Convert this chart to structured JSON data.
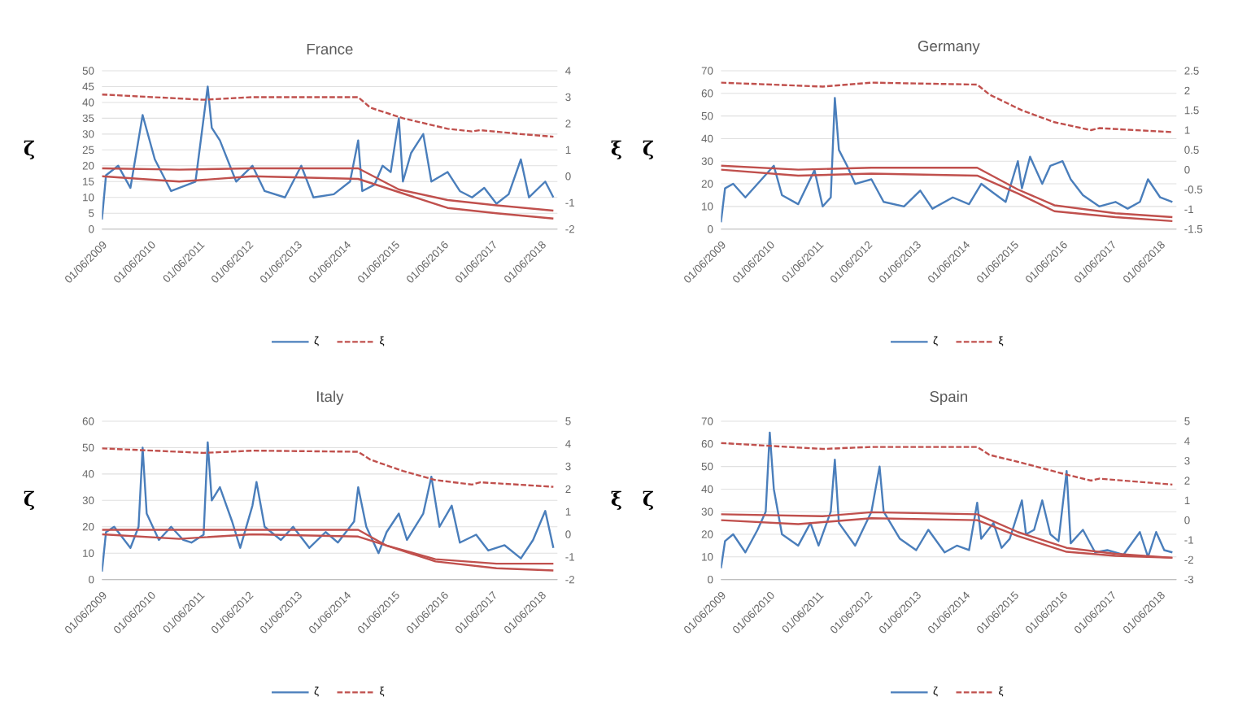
{
  "chart_data": [
    {
      "type": "line",
      "title": "France",
      "ylabel": "ζ",
      "y2label": "ξ",
      "grid": "y",
      "legend": "bottom",
      "xlim": [
        "2009-06-01",
        "2018-10-01"
      ],
      "xticks": [
        {
          "value": "2009-06-01",
          "label": "01/06/2009"
        },
        {
          "value": "2010-06-01",
          "label": "01/06/2010"
        },
        {
          "value": "2011-06-01",
          "label": "01/06/2011"
        },
        {
          "value": "2012-06-01",
          "label": "01/06/2012"
        },
        {
          "value": "2013-06-01",
          "label": "01/06/2013"
        },
        {
          "value": "2014-06-01",
          "label": "01/06/2014"
        },
        {
          "value": "2015-06-01",
          "label": "01/06/2015"
        },
        {
          "value": "2016-06-01",
          "label": "01/06/2016"
        },
        {
          "value": "2017-06-01",
          "label": "01/06/2017"
        },
        {
          "value": "2018-06-01",
          "label": "01/06/2018"
        }
      ],
      "ylim": [
        0,
        50
      ],
      "yticks": [
        0,
        5,
        10,
        15,
        20,
        25,
        30,
        35,
        40,
        45,
        50
      ],
      "y2lim": [
        -2,
        4
      ],
      "y2ticks": [
        -2,
        -1,
        0,
        1,
        2,
        3,
        4
      ],
      "series": [
        {
          "name": "ζ",
          "color": "#4a7ebb",
          "line_style": "solid",
          "x": [
            "2009-06",
            "2009-07",
            "2009-10",
            "2010-01",
            "2010-04",
            "2010-07",
            "2010-11",
            "2011-05",
            "2011-08",
            "2011-09",
            "2011-11",
            "2012-03",
            "2012-07",
            "2012-10",
            "2013-03",
            "2013-07",
            "2013-10",
            "2014-03",
            "2014-07",
            "2014-09",
            "2014-10",
            "2015-01",
            "2015-03",
            "2015-05",
            "2015-07",
            "2015-08",
            "2015-10",
            "2016-01",
            "2016-03",
            "2016-07",
            "2016-10",
            "2017-01",
            "2017-04",
            "2017-07",
            "2017-10",
            "2018-01",
            "2018-03",
            "2018-07",
            "2018-09"
          ],
          "values": [
            3,
            17,
            20,
            13,
            36,
            22,
            12,
            15,
            45,
            32,
            28,
            15,
            20,
            12,
            10,
            20,
            10,
            11,
            15,
            28,
            12,
            14,
            20,
            18,
            35,
            15,
            24,
            30,
            15,
            18,
            12,
            10,
            13,
            8,
            11,
            22,
            10,
            15,
            10
          ]
        },
        {
          "name": "ξ",
          "color": "#c0504d",
          "axis": "y2",
          "line_style": "dashed",
          "x": [
            "2009-06",
            "2011-07",
            "2012-07",
            "2014-09",
            "2014-12",
            "2015-08",
            "2016-07",
            "2017-01",
            "2017-03",
            "2018-01",
            "2018-09"
          ],
          "values": [
            3.1,
            2.9,
            3.0,
            3.0,
            2.6,
            2.2,
            1.8,
            1.7,
            1.75,
            1.6,
            1.5
          ]
        },
        {
          "color": "#c0504d",
          "axis": "y2",
          "line_style": "solid",
          "x": [
            "2009-06",
            "2011-01",
            "2012-07",
            "2014-09",
            "2015-07",
            "2016-07",
            "2017-07",
            "2018-09"
          ],
          "values": [
            0.3,
            0.25,
            0.3,
            0.3,
            -0.5,
            -0.9,
            -1.1,
            -1.3
          ]
        },
        {
          "color": "#c0504d",
          "axis": "y2",
          "line_style": "solid",
          "x": [
            "2009-06",
            "2011-01",
            "2012-07",
            "2014-09",
            "2015-07",
            "2016-07",
            "2017-07",
            "2018-09"
          ],
          "values": [
            0.0,
            -0.2,
            0.0,
            -0.1,
            -0.6,
            -1.2,
            -1.4,
            -1.6
          ]
        }
      ]
    },
    {
      "type": "line",
      "title": "Germany",
      "ylabel": "ζ",
      "grid": "y",
      "legend": "bottom",
      "xlim": [
        "2009-06-01",
        "2018-10-01"
      ],
      "xticks": [
        {
          "value": "2009-06-01",
          "label": "01/06/2009"
        },
        {
          "value": "2010-06-01",
          "label": "01/06/2010"
        },
        {
          "value": "2011-06-01",
          "label": "01/06/2011"
        },
        {
          "value": "2012-06-01",
          "label": "01/06/2012"
        },
        {
          "value": "2013-06-01",
          "label": "01/06/2013"
        },
        {
          "value": "2014-06-01",
          "label": "01/06/2014"
        },
        {
          "value": "2015-06-01",
          "label": "01/06/2015"
        },
        {
          "value": "2016-06-01",
          "label": "01/06/2016"
        },
        {
          "value": "2017-06-01",
          "label": "01/06/2017"
        },
        {
          "value": "2018-06-01",
          "label": "01/06/2018"
        }
      ],
      "ylim": [
        0,
        70
      ],
      "yticks": [
        0,
        10,
        20,
        30,
        40,
        50,
        60,
        70
      ],
      "y2lim": [
        -1.5,
        2.5
      ],
      "y2ticks": [
        -1.5,
        -1,
        -0.5,
        0,
        0.5,
        1,
        1.5,
        2,
        2.5
      ],
      "series": [
        {
          "name": "ζ",
          "color": "#4a7ebb",
          "line_style": "solid",
          "x": [
            "2009-06",
            "2009-07",
            "2009-09",
            "2009-12",
            "2010-04",
            "2010-07",
            "2010-09",
            "2011-01",
            "2011-05",
            "2011-07",
            "2011-09",
            "2011-10",
            "2011-11",
            "2012-01",
            "2012-03",
            "2012-07",
            "2012-10",
            "2013-03",
            "2013-07",
            "2013-10",
            "2014-03",
            "2014-07",
            "2014-10",
            "2015-01",
            "2015-04",
            "2015-07",
            "2015-08",
            "2015-10",
            "2016-01",
            "2016-03",
            "2016-06",
            "2016-08",
            "2016-11",
            "2017-03",
            "2017-07",
            "2017-10",
            "2018-01",
            "2018-03",
            "2018-06",
            "2018-09"
          ],
          "values": [
            3,
            18,
            20,
            14,
            22,
            28,
            15,
            11,
            26,
            10,
            14,
            58,
            35,
            28,
            20,
            22,
            12,
            10,
            17,
            9,
            14,
            11,
            20,
            16,
            12,
            30,
            18,
            32,
            20,
            28,
            30,
            22,
            15,
            10,
            12,
            9,
            12,
            22,
            14,
            12
          ]
        },
        {
          "name": "ξ",
          "color": "#c0504d",
          "axis": "y2",
          "line_style": "dashed",
          "x": [
            "2009-06",
            "2011-07",
            "2012-07",
            "2014-09",
            "2014-12",
            "2015-08",
            "2016-04",
            "2017-01",
            "2017-03",
            "2018-09"
          ],
          "values": [
            2.2,
            2.1,
            2.2,
            2.15,
            1.9,
            1.5,
            1.2,
            1.0,
            1.05,
            0.95
          ]
        },
        {
          "color": "#c0504d",
          "axis": "y2",
          "line_style": "solid",
          "x": [
            "2009-06",
            "2011-01",
            "2012-07",
            "2014-09",
            "2015-07",
            "2016-04",
            "2017-07",
            "2018-09"
          ],
          "values": [
            0.1,
            0.0,
            0.05,
            0.05,
            -0.5,
            -0.9,
            -1.1,
            -1.2
          ]
        },
        {
          "color": "#c0504d",
          "axis": "y2",
          "line_style": "solid",
          "x": [
            "2009-06",
            "2011-01",
            "2012-07",
            "2014-09",
            "2015-07",
            "2016-04",
            "2017-07",
            "2018-09"
          ],
          "values": [
            0.0,
            -0.15,
            -0.1,
            -0.15,
            -0.6,
            -1.05,
            -1.2,
            -1.3
          ]
        }
      ]
    },
    {
      "type": "line",
      "title": "Italy",
      "ylabel": "ζ",
      "y2label": "ξ",
      "grid": "y",
      "legend": "bottom",
      "xlim": [
        "2009-06-01",
        "2018-10-01"
      ],
      "xticks": [
        {
          "value": "2009-06-01",
          "label": "01/06/2009"
        },
        {
          "value": "2010-06-01",
          "label": "01/06/2010"
        },
        {
          "value": "2011-06-01",
          "label": "01/06/2011"
        },
        {
          "value": "2012-06-01",
          "label": "01/06/2012"
        },
        {
          "value": "2013-06-01",
          "label": "01/06/2013"
        },
        {
          "value": "2014-06-01",
          "label": "01/06/2014"
        },
        {
          "value": "2015-06-01",
          "label": "01/06/2015"
        },
        {
          "value": "2016-06-01",
          "label": "01/06/2016"
        },
        {
          "value": "2017-06-01",
          "label": "01/06/2017"
        },
        {
          "value": "2018-06-01",
          "label": "01/06/2018"
        }
      ],
      "ylim": [
        0,
        60
      ],
      "yticks": [
        0,
        10,
        20,
        30,
        40,
        50,
        60
      ],
      "y2lim": [
        -2,
        5
      ],
      "y2ticks": [
        -2,
        -1,
        0,
        1,
        2,
        3,
        4,
        5
      ],
      "series": [
        {
          "name": "ζ",
          "color": "#4a7ebb",
          "line_style": "solid",
          "x": [
            "2009-06",
            "2009-07",
            "2009-09",
            "2010-01",
            "2010-03",
            "2010-04",
            "2010-05",
            "2010-08",
            "2010-11",
            "2011-02",
            "2011-04",
            "2011-07",
            "2011-08",
            "2011-09",
            "2011-11",
            "2012-02",
            "2012-04",
            "2012-07",
            "2012-08",
            "2012-10",
            "2013-02",
            "2013-05",
            "2013-09",
            "2014-01",
            "2014-04",
            "2014-08",
            "2014-09",
            "2014-11",
            "2015-02",
            "2015-04",
            "2015-07",
            "2015-09",
            "2016-01",
            "2016-03",
            "2016-05",
            "2016-08",
            "2016-10",
            "2017-02",
            "2017-05",
            "2017-09",
            "2018-01",
            "2018-04",
            "2018-07",
            "2018-09"
          ],
          "values": [
            3,
            18,
            20,
            12,
            20,
            50,
            25,
            15,
            20,
            15,
            14,
            17,
            52,
            30,
            35,
            22,
            12,
            28,
            37,
            20,
            15,
            20,
            12,
            18,
            14,
            22,
            35,
            20,
            10,
            18,
            25,
            15,
            25,
            39,
            20,
            28,
            14,
            17,
            11,
            13,
            8,
            15,
            26,
            12
          ]
        },
        {
          "name": "ξ",
          "color": "#c0504d",
          "axis": "y2",
          "line_style": "dashed",
          "x": [
            "2009-06",
            "2011-07",
            "2012-07",
            "2014-09",
            "2014-12",
            "2015-08",
            "2016-04",
            "2017-01",
            "2017-03",
            "2018-09"
          ],
          "values": [
            3.8,
            3.6,
            3.7,
            3.65,
            3.3,
            2.8,
            2.4,
            2.2,
            2.3,
            2.1
          ]
        },
        {
          "color": "#c0504d",
          "axis": "y2",
          "line_style": "solid",
          "x": [
            "2009-06",
            "2011-01",
            "2012-07",
            "2014-09",
            "2015-04",
            "2016-04",
            "2017-07",
            "2018-09"
          ],
          "values": [
            0.2,
            0.2,
            0.2,
            0.2,
            -0.5,
            -1.1,
            -1.3,
            -1.3
          ]
        },
        {
          "color": "#c0504d",
          "axis": "y2",
          "line_style": "solid",
          "x": [
            "2009-06",
            "2011-01",
            "2012-07",
            "2014-09",
            "2015-04",
            "2016-04",
            "2017-07",
            "2018-09"
          ],
          "values": [
            0.0,
            -0.2,
            0.0,
            -0.1,
            -0.5,
            -1.2,
            -1.5,
            -1.6
          ]
        }
      ]
    },
    {
      "type": "line",
      "title": "Spain",
      "ylabel": "ζ",
      "grid": "y",
      "legend": "bottom",
      "xlim": [
        "2009-06-01",
        "2018-10-01"
      ],
      "xticks": [
        {
          "value": "2009-06-01",
          "label": "01/06/2009"
        },
        {
          "value": "2010-06-01",
          "label": "01/06/2010"
        },
        {
          "value": "2011-06-01",
          "label": "01/06/2011"
        },
        {
          "value": "2012-06-01",
          "label": "01/06/2012"
        },
        {
          "value": "2013-06-01",
          "label": "01/06/2013"
        },
        {
          "value": "2014-06-01",
          "label": "01/06/2014"
        },
        {
          "value": "2015-06-01",
          "label": "01/06/2015"
        },
        {
          "value": "2016-06-01",
          "label": "01/06/2016"
        },
        {
          "value": "2017-06-01",
          "label": "01/06/2017"
        },
        {
          "value": "2018-06-01",
          "label": "01/06/2018"
        }
      ],
      "ylim": [
        0,
        70
      ],
      "yticks": [
        0,
        10,
        20,
        30,
        40,
        50,
        60,
        70
      ],
      "y2lim": [
        -3,
        5
      ],
      "y2ticks": [
        -3,
        -2,
        -1,
        0,
        1,
        2,
        3,
        4,
        5
      ],
      "series": [
        {
          "name": "ζ",
          "color": "#4a7ebb",
          "line_style": "solid",
          "x": [
            "2009-06",
            "2009-07",
            "2009-09",
            "2009-12",
            "2010-03",
            "2010-05",
            "2010-06",
            "2010-07",
            "2010-09",
            "2011-01",
            "2011-04",
            "2011-06",
            "2011-09",
            "2011-10",
            "2011-11",
            "2012-03",
            "2012-07",
            "2012-09",
            "2012-10",
            "2013-02",
            "2013-06",
            "2013-09",
            "2014-01",
            "2014-04",
            "2014-07",
            "2014-09",
            "2014-10",
            "2015-01",
            "2015-03",
            "2015-05",
            "2015-08",
            "2015-09",
            "2015-11",
            "2016-01",
            "2016-03",
            "2016-05",
            "2016-07",
            "2016-08",
            "2016-11",
            "2017-02",
            "2017-05",
            "2017-09",
            "2018-01",
            "2018-03",
            "2018-05",
            "2018-07",
            "2018-09"
          ],
          "values": [
            5,
            17,
            20,
            12,
            22,
            30,
            65,
            40,
            20,
            15,
            25,
            15,
            30,
            53,
            25,
            15,
            30,
            50,
            30,
            18,
            13,
            22,
            12,
            15,
            13,
            34,
            18,
            25,
            14,
            18,
            35,
            20,
            22,
            35,
            20,
            17,
            48,
            16,
            22,
            12,
            13,
            11,
            21,
            10,
            21,
            13,
            12
          ]
        },
        {
          "name": "ξ",
          "color": "#c0504d",
          "axis": "y2",
          "line_style": "dashed",
          "x": [
            "2009-06",
            "2011-07",
            "2012-07",
            "2014-09",
            "2014-12",
            "2015-08",
            "2016-07",
            "2017-01",
            "2017-03",
            "2018-09"
          ],
          "values": [
            3.9,
            3.6,
            3.7,
            3.7,
            3.3,
            2.9,
            2.3,
            2.0,
            2.1,
            1.8
          ]
        },
        {
          "color": "#c0504d",
          "axis": "y2",
          "line_style": "solid",
          "x": [
            "2009-06",
            "2011-07",
            "2012-07",
            "2014-09",
            "2015-07",
            "2016-07",
            "2017-07",
            "2018-09"
          ],
          "values": [
            0.3,
            0.2,
            0.4,
            0.3,
            -0.6,
            -1.4,
            -1.7,
            -1.9
          ]
        },
        {
          "color": "#c0504d",
          "axis": "y2",
          "line_style": "solid",
          "x": [
            "2009-06",
            "2011-01",
            "2012-07",
            "2014-09",
            "2015-07",
            "2016-07",
            "2017-07",
            "2018-09"
          ],
          "values": [
            0.0,
            -0.2,
            0.1,
            0.0,
            -0.8,
            -1.6,
            -1.8,
            -1.9
          ]
        }
      ]
    }
  ]
}
